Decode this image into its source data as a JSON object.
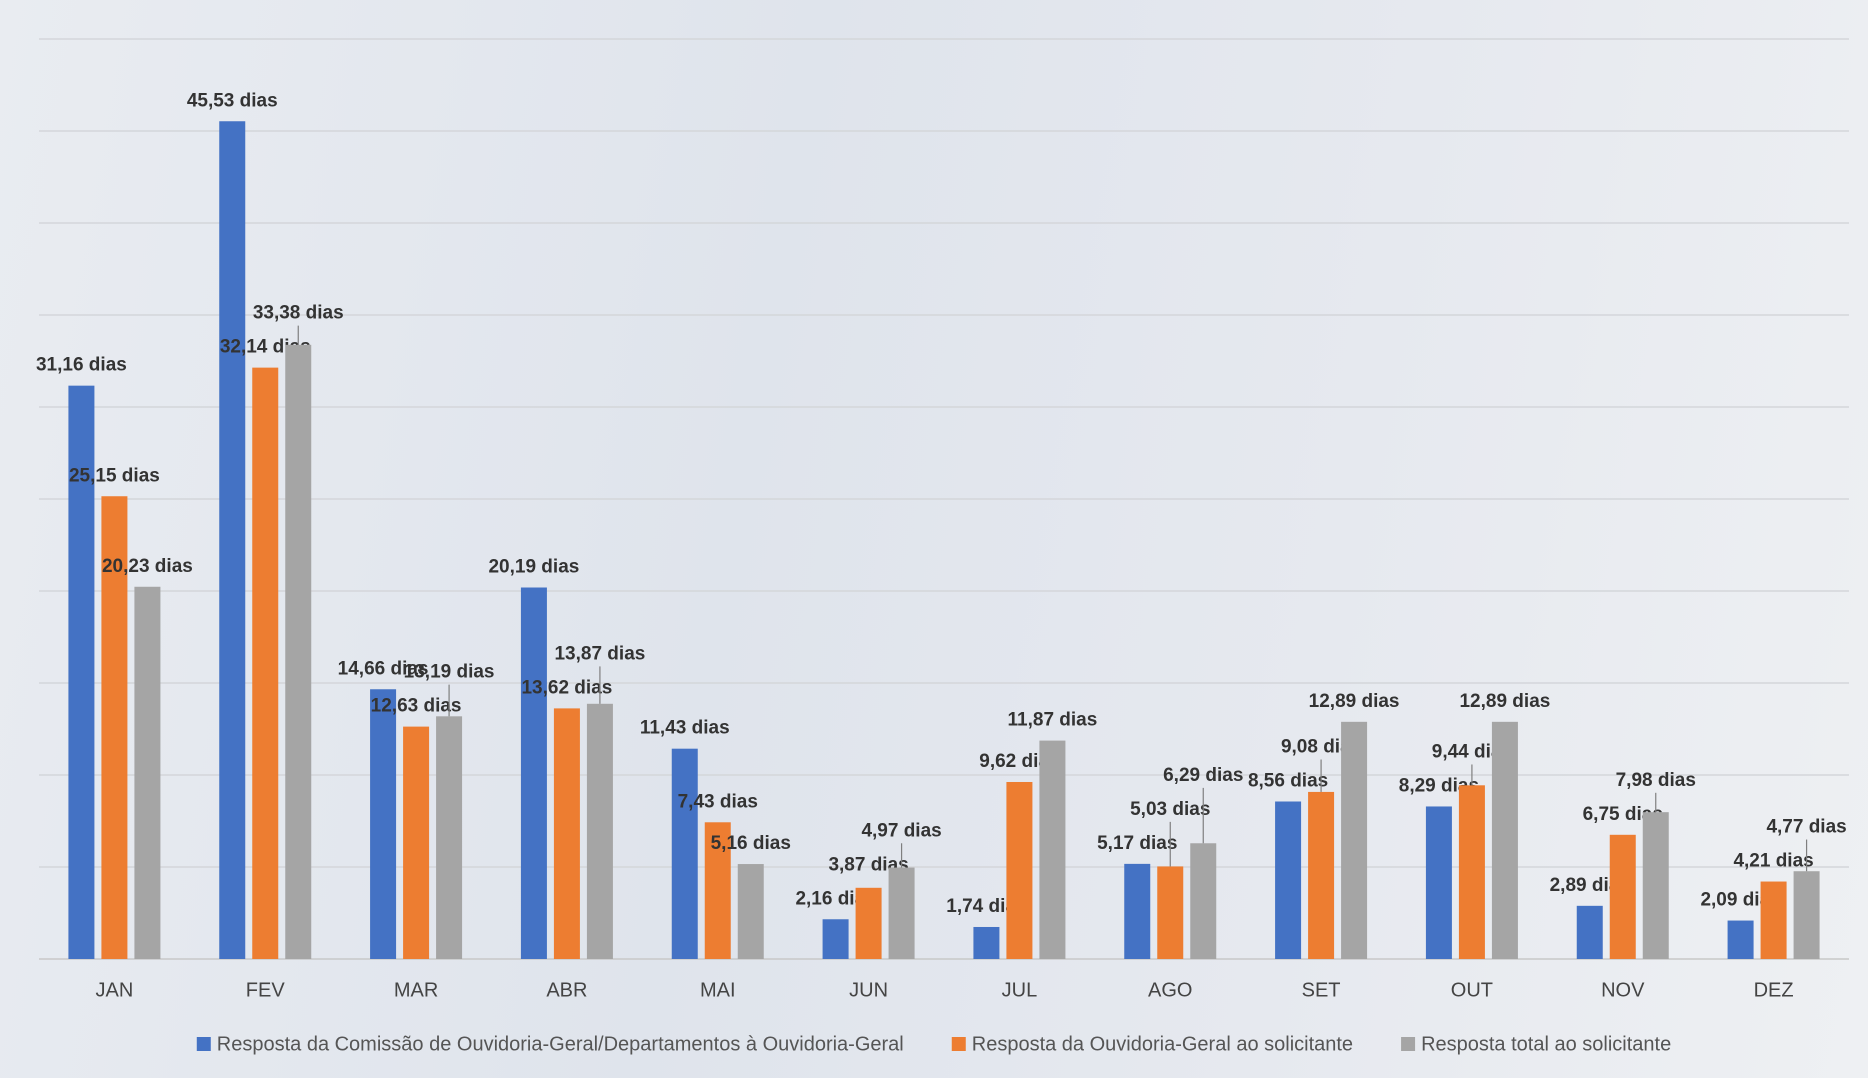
{
  "chart_data": {
    "type": "bar",
    "categories": [
      "JAN",
      "FEV",
      "MAR",
      "ABR",
      "MAI",
      "JUN",
      "JUL",
      "AGO",
      "SET",
      "OUT",
      "NOV",
      "DEZ"
    ],
    "series": [
      {
        "name": "Resposta da Comissão de Ouvidoria-Geral/Departamentos à Ouvidoria-Geral",
        "color": "#4472c4",
        "values": [
          31.16,
          45.53,
          14.66,
          20.19,
          11.43,
          2.16,
          1.74,
          5.17,
          8.56,
          8.29,
          2.89,
          2.09
        ],
        "value_labels": [
          "31,16 dias",
          "45,53 dias",
          "14,66 dias",
          "20,19 dias",
          "11,43 dias",
          "2,16 dias",
          "1,74 dias",
          "5,17 dias",
          "8,56 dias",
          "8,29 dias",
          "2,89 dias",
          "2,09 dias"
        ]
      },
      {
        "name": "Resposta da Ouvidoria-Geral ao solicitante",
        "color": "#ed7d31",
        "values": [
          25.15,
          32.14,
          12.63,
          13.62,
          7.43,
          3.87,
          9.62,
          5.03,
          9.08,
          9.44,
          6.75,
          4.21
        ],
        "value_labels": [
          "25,15 dias",
          "32,14 dias",
          "12,63 dias",
          "13,62 dias",
          "7,43 dias",
          "3,87 dias",
          "9,62 dias",
          "5,03 dias",
          "9,08 dias",
          "9,44 dias",
          "6,75 dias",
          "4,21 dias"
        ]
      },
      {
        "name": "Resposta total ao solicitante",
        "color": "#a5a5a5",
        "values": [
          20.23,
          33.38,
          13.19,
          13.87,
          5.16,
          4.97,
          11.87,
          6.29,
          12.89,
          12.89,
          7.98,
          4.77
        ],
        "value_labels": [
          "20,23 dias",
          "33,38 dias",
          "13,19 dias",
          "13,87 dias",
          "5,16 dias",
          "4,97 dias",
          "11,87 dias",
          "6,29 dias",
          "12,89 dias",
          "12,89 dias",
          "7,98 dias",
          "4,77 dias"
        ]
      }
    ],
    "ylim": [
      0,
      50
    ],
    "yticks": [
      0,
      5,
      10,
      15,
      20,
      25,
      30,
      35,
      40,
      45,
      50
    ],
    "grid": true
  }
}
